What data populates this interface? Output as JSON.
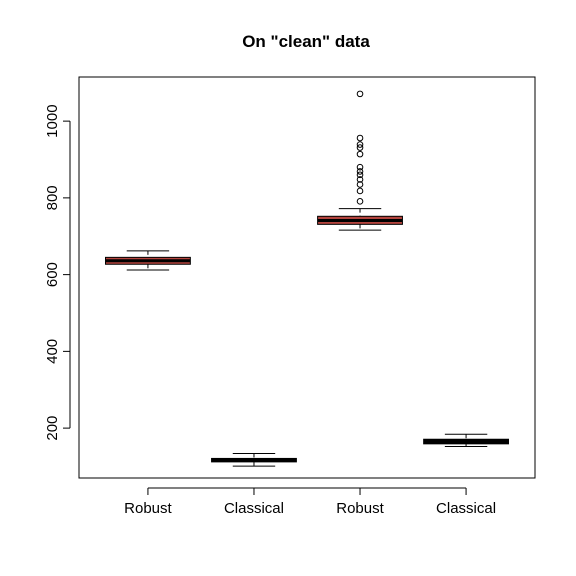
{
  "chart_data": {
    "type": "box",
    "title": "On \"clean\" data",
    "xlabel": "",
    "ylabel": "",
    "ylim": [
      70,
      1115
    ],
    "yticks": [
      200,
      400,
      600,
      800,
      1000
    ],
    "grid": false,
    "categories": [
      "Robust",
      "Classical",
      "Robust",
      "Classical"
    ],
    "boxes": [
      {
        "label": "Robust",
        "fill": "#b4443e",
        "whisker_low": 612,
        "q1": 627,
        "median": 636,
        "q3": 645,
        "whisker_high": 662,
        "outliers": []
      },
      {
        "label": "Classical",
        "fill": "#000000",
        "whisker_low": 101,
        "q1": 112,
        "median": 116,
        "q3": 121,
        "whisker_high": 134,
        "outliers": []
      },
      {
        "label": "Robust",
        "fill": "#b4443e",
        "whisker_low": 716,
        "q1": 731,
        "median": 741,
        "q3": 752,
        "whisker_high": 772,
        "outliers": [
          791,
          818,
          835,
          848,
          860,
          869,
          880,
          914,
          931,
          939,
          956,
          1071
        ]
      },
      {
        "label": "Classical",
        "fill": "#000000",
        "whisker_low": 152,
        "q1": 159,
        "median": 165,
        "q3": 171,
        "whisker_high": 184,
        "outliers": []
      }
    ]
  }
}
